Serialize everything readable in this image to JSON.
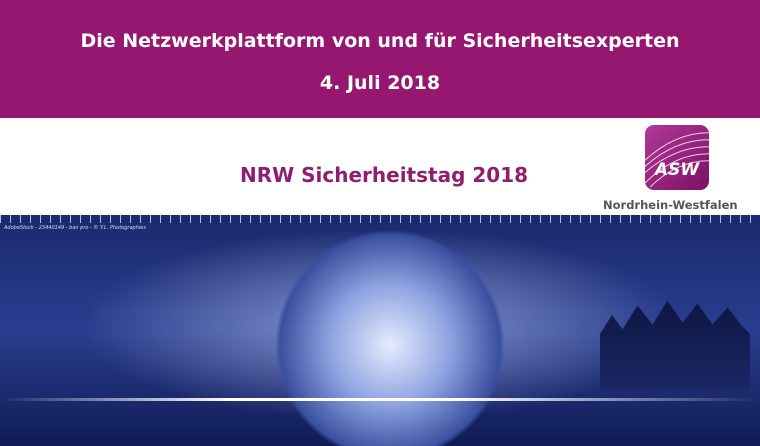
{
  "header": {
    "title": "Die Netzwerkplattform von und für Sicherheitsexperten",
    "date": "4. Juli 2018"
  },
  "event": {
    "title": "NRW Sicherheitstag 2018"
  },
  "logo": {
    "text": "ASW",
    "region": "Nordrhein-Westfalen"
  },
  "image": {
    "credit": "AdobeStock - 23440149 - ban pro - © Y.L. Photographies"
  },
  "colors": {
    "brand": "#96176f",
    "event_title": "#8e1f70"
  }
}
